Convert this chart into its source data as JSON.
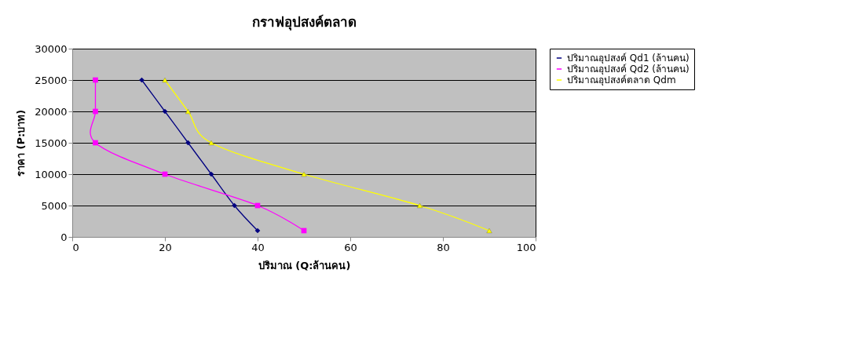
{
  "chart_data": {
    "type": "line",
    "title": "กราฟอุปสงค์ตลาด",
    "xlabel": "ปริมาณ (Q:ล้านคน)",
    "ylabel": "ราคา (P:บาท)",
    "xlim": [
      0,
      100
    ],
    "xticks": [
      0,
      20,
      40,
      60,
      80,
      100
    ],
    "ylim": [
      0,
      30000
    ],
    "yticks": [
      0,
      5000,
      10000,
      15000,
      20000,
      25000,
      30000
    ],
    "grid": "y",
    "legend": "right",
    "series": [
      {
        "name": "ปริมาณอุปสงค์ Qd1 (ล้านคน)",
        "color": "#000080",
        "marker": "diamond",
        "x": [
          15,
          20,
          25,
          30,
          35,
          40
        ],
        "values": [
          25000,
          20000,
          15000,
          10000,
          5000,
          1000
        ]
      },
      {
        "name": "ปริมาณอุปสงค์ Qd2 (ล้านคน)",
        "color": "#ff00ff",
        "marker": "square",
        "x": [
          5,
          5,
          5,
          20,
          40,
          50
        ],
        "values": [
          25000,
          20000,
          15000,
          10000,
          5000,
          1000
        ]
      },
      {
        "name": "ปริมาณอุปสงค์ตลาด Qdm",
        "color": "#ffff00",
        "marker": "triangle",
        "x": [
          20,
          25,
          30,
          50,
          75,
          90
        ],
        "values": [
          25000,
          20000,
          15000,
          10000,
          5000,
          1000
        ]
      }
    ]
  }
}
